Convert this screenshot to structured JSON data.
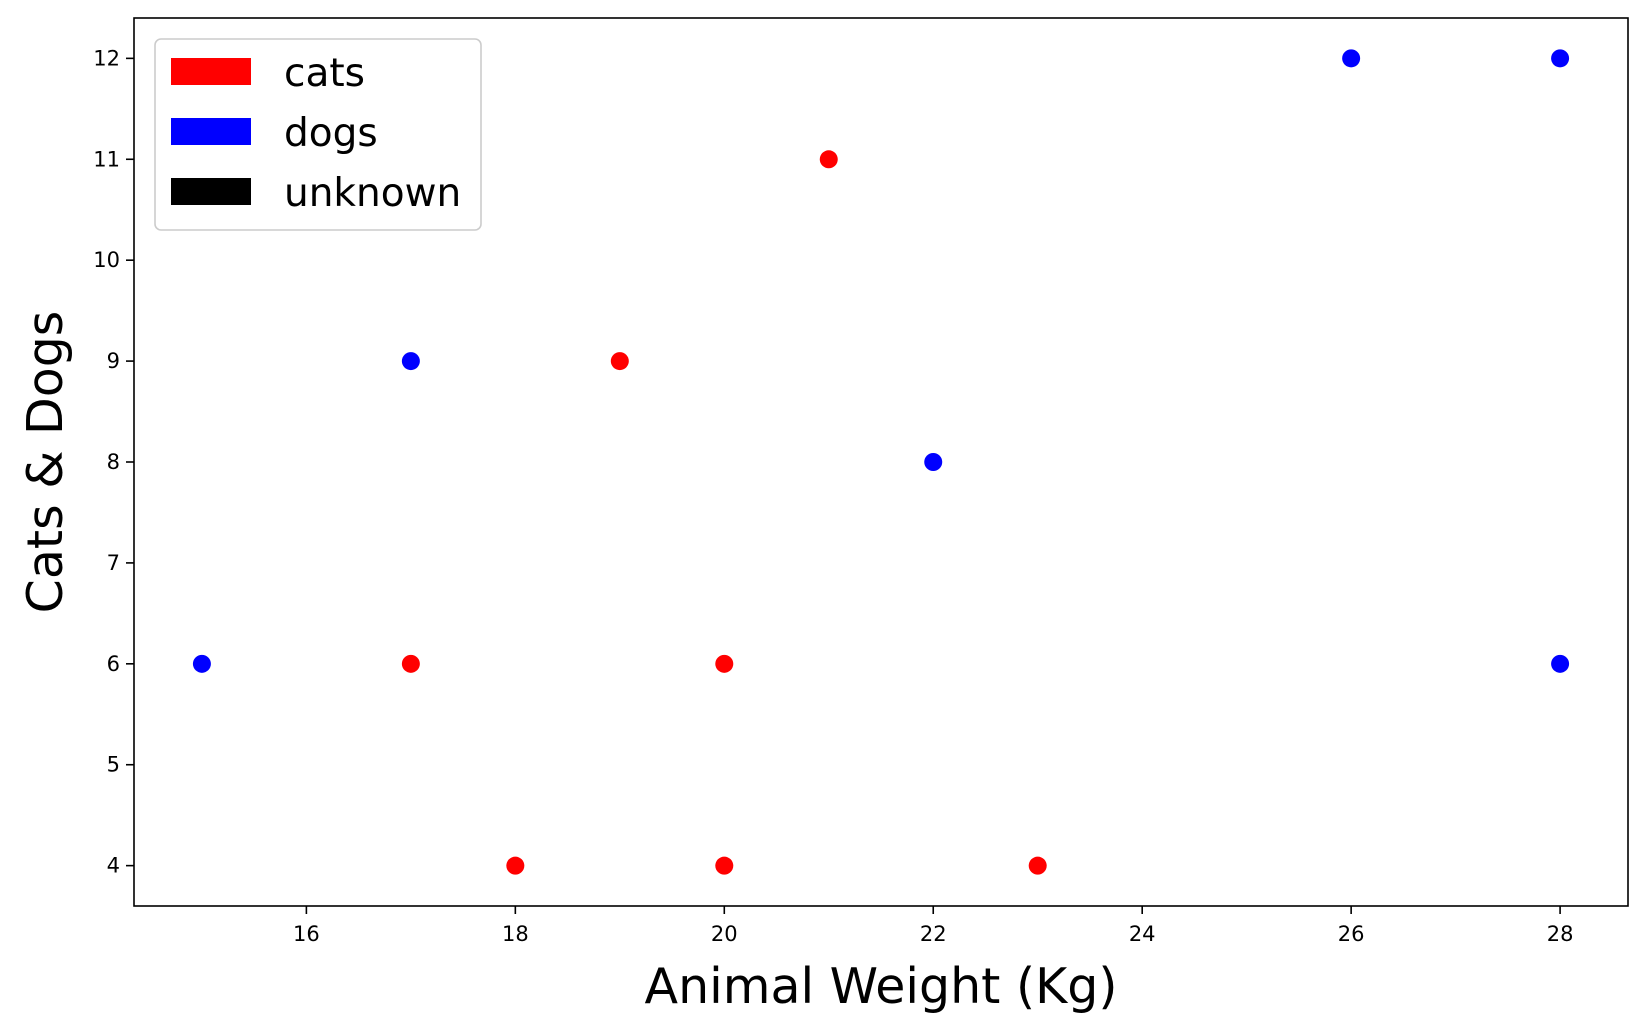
{
  "chart_data": {
    "type": "scatter",
    "title": "",
    "xlabel": "Animal Weight (Kg)",
    "ylabel": "Cats & Dogs",
    "xlim": [
      14.35,
      28.65
    ],
    "ylim": [
      3.6,
      12.4
    ],
    "xticks": [
      16,
      18,
      20,
      22,
      24,
      26,
      28
    ],
    "yticks": [
      4,
      5,
      6,
      7,
      8,
      9,
      10,
      11,
      12
    ],
    "grid": false,
    "legend_position": "top-left",
    "legend": [
      {
        "name": "cats",
        "color": "#ff0000"
      },
      {
        "name": "dogs",
        "color": "#0000ff"
      },
      {
        "name": "unknown",
        "color": "#000000"
      }
    ],
    "series": [
      {
        "name": "cats",
        "color": "#ff0000",
        "points": [
          [
            17,
            6
          ],
          [
            18,
            4
          ],
          [
            19,
            9
          ],
          [
            20,
            6
          ],
          [
            20,
            4
          ],
          [
            21,
            11
          ],
          [
            23,
            4
          ]
        ]
      },
      {
        "name": "dogs",
        "color": "#0000ff",
        "points": [
          [
            15,
            6
          ],
          [
            17,
            9
          ],
          [
            22,
            8
          ],
          [
            26,
            12
          ],
          [
            28,
            12
          ],
          [
            28,
            6
          ]
        ]
      }
    ]
  }
}
